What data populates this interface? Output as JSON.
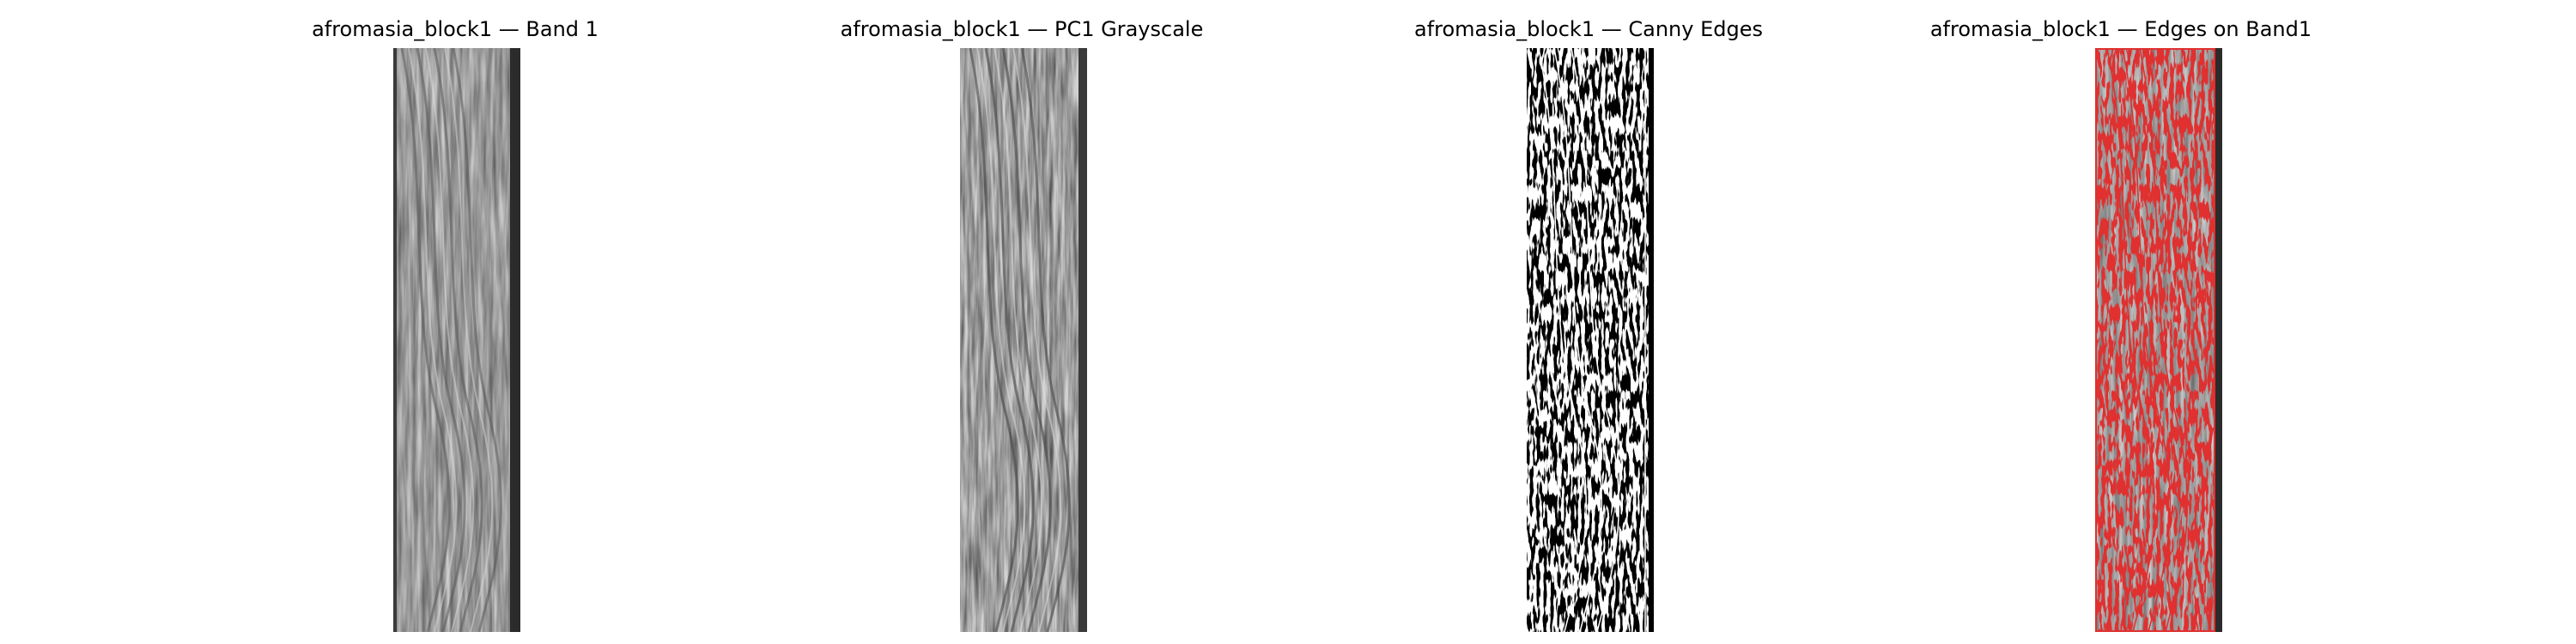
{
  "panels": [
    {
      "title": "afromasia_block1 — Band 1",
      "image": "grayscale-wood-texture"
    },
    {
      "title": "afromasia_block1 — PC1 Grayscale",
      "image": "pc1-grayscale-wood-texture"
    },
    {
      "title": "afromasia_block1 — Canny Edges",
      "image": "canny-edge-map-white-on-black"
    },
    {
      "title": "afromasia_block1 — Edges on Band1",
      "image": "red-edges-overlaid-on-grayscale"
    }
  ],
  "colors": {
    "edge_white": "#ffffff",
    "edge_red": "#e03030",
    "background_black": "#000000"
  }
}
